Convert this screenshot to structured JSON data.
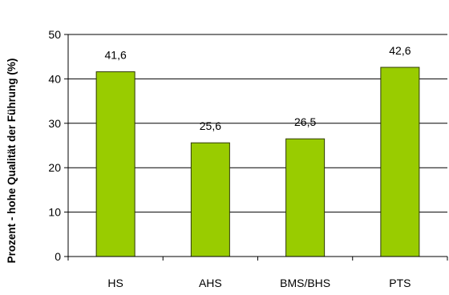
{
  "chart_data": {
    "type": "bar",
    "title": "",
    "xlabel": "",
    "ylabel": "Prozent - hohe Qualität der Führung (%)",
    "categories": [
      "HS",
      "AHS",
      "BMS/BHS",
      "PTS"
    ],
    "values": [
      41.6,
      25.6,
      26.5,
      42.6
    ],
    "value_labels": [
      "41,6",
      "25,6",
      "26,5",
      "42,6"
    ],
    "y_ticks": [
      0,
      10,
      20,
      30,
      40,
      50
    ],
    "ylim": [
      0,
      50
    ],
    "grid": true,
    "legend": "none",
    "bar_color": "#99cc00",
    "bar_edge_color": "#2f3a00",
    "grid_color": "#000000"
  }
}
